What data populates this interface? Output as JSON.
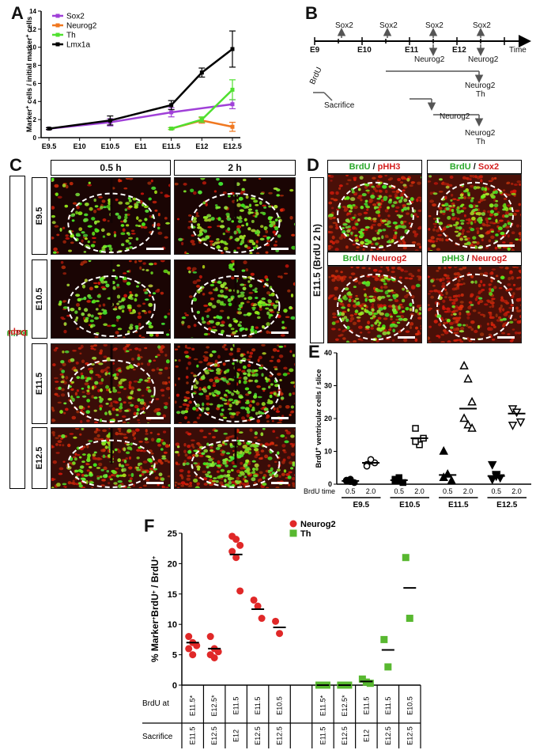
{
  "panels": {
    "A": {
      "label": "A",
      "chart_data": {
        "type": "line",
        "ylabel_parts": [
          "Marker",
          "+",
          " cells / initial marker",
          "+",
          " cells"
        ],
        "categories": [
          "E9.5",
          "E10",
          "E10.5",
          "E11",
          "E11.5",
          "E12",
          "E12.5"
        ],
        "x_index": [
          0,
          1,
          2,
          3,
          4,
          5,
          6
        ],
        "ylim": [
          0,
          14
        ],
        "yticks": [
          "0",
          "2",
          "4",
          "6",
          "8",
          "10",
          "12",
          "14"
        ],
        "legend_placement": "top-left",
        "series": [
          {
            "name": "Sox2",
            "color": "#a040d8",
            "points": [
              [
                0,
                1
              ],
              [
                2,
                1.7
              ],
              [
                4,
                2.8
              ],
              [
                6,
                3.7
              ]
            ],
            "err": [
              0.1,
              0.4,
              0.5,
              0.5
            ]
          },
          {
            "name": "Neurog2",
            "color": "#f07820",
            "points": [
              [
                4,
                1
              ],
              [
                5,
                1.9
              ],
              [
                6,
                1.2
              ]
            ],
            "err": [
              0.1,
              0.3,
              0.5
            ]
          },
          {
            "name": "Th",
            "color": "#50e030",
            "points": [
              [
                4,
                1
              ],
              [
                5,
                2
              ],
              [
                6,
                5.3
              ]
            ],
            "err": [
              0.1,
              0.3,
              1.1
            ]
          },
          {
            "name": "Lmx1a",
            "color": "#000000",
            "points": [
              [
                0,
                1
              ],
              [
                2,
                1.9
              ],
              [
                4,
                3.6
              ],
              [
                5,
                7.2
              ],
              [
                6,
                9.8
              ]
            ],
            "err": [
              0.1,
              0.5,
              0.5,
              0.5,
              2
            ]
          }
        ]
      }
    },
    "B": {
      "label": "B",
      "timeline": [
        "E9",
        "E10",
        "E11",
        "E12"
      ],
      "time_label": "Time",
      "sox2": "Sox2",
      "neurog2": "Neurog2",
      "th": "Th",
      "brdu": "BrdU",
      "sacrifice": "Sacrifice"
    },
    "C": {
      "label": "C",
      "side_left": "BrdU",
      "side_sep": " / ",
      "side_right": "Dapi",
      "cols": [
        "0.5 h",
        "2 h"
      ],
      "rows": [
        "E9.5",
        "E10.5",
        "E11.5",
        "E12.5"
      ]
    },
    "D": {
      "label": "D",
      "side": "E11.5 (BrdU 2 h)",
      "sep": " / ",
      "headers": [
        {
          "a": "BrdU",
          "b": "pHH3"
        },
        {
          "a": "BrdU",
          "b": "Sox2"
        },
        {
          "a": "BrdU",
          "b": "Neurog2"
        },
        {
          "a": "pHH3",
          "b": "Neurog2"
        }
      ]
    },
    "E": {
      "label": "E",
      "chart_data": {
        "type": "scatter",
        "ylabel_parts": [
          "BrdU",
          "+",
          " ventricular cells / slice"
        ],
        "ylim": [
          0,
          40
        ],
        "yticks": [
          "0",
          "10",
          "20",
          "30",
          "40"
        ],
        "brdu_time_label": "BrdU time",
        "times": [
          "0.5",
          "2.0"
        ],
        "groups": [
          {
            "name": "E9.5",
            "marker": "circle",
            "t05": [
              1,
              1.5,
              0.5,
              1.2,
              0.8
            ],
            "t05_mean": 1,
            "t20": [
              6,
              7,
              6.5,
              5.5,
              7.5
            ],
            "t20_mean": 6.5
          },
          {
            "name": "E10.5",
            "marker": "square",
            "t05": [
              1,
              2,
              0.5,
              1.5,
              1
            ],
            "t05_mean": 1.2,
            "t20": [
              17,
              12,
              14,
              13
            ],
            "t20_mean": 14
          },
          {
            "name": "E11.5",
            "marker": "triangle",
            "t05": [
              10,
              3,
              1,
              2
            ],
            "t05_mean": 2.8,
            "t20": [
              36,
              32,
              25,
              20,
              18,
              17
            ],
            "t20_mean": 23
          },
          {
            "name": "E12.5",
            "marker": "tri-down",
            "t05": [
              6,
              3,
              2,
              1.5,
              2.5
            ],
            "t05_mean": 2.5,
            "t20": [
              23,
              22,
              19,
              18
            ],
            "t20_mean": 21.5
          }
        ]
      }
    },
    "F": {
      "label": "F",
      "chart_data": {
        "type": "scatter",
        "ylabel_parts": [
          "% Marker",
          "+",
          "BrdU",
          "+",
          " / BrdU",
          "+"
        ],
        "ylim": [
          0,
          25
        ],
        "yticks": [
          "0",
          "5",
          "10",
          "15",
          "20",
          "25"
        ],
        "legend_placement": "top-right",
        "series": [
          {
            "name": "Neurog2",
            "color": "#e02828",
            "marker": "circle"
          },
          {
            "name": "Th",
            "color": "#58b830",
            "marker": "square"
          }
        ],
        "row_labels": [
          "BrdU at",
          "Sacrifice"
        ],
        "columns": [
          {
            "brdu": "E11.5*",
            "sac": "E11.5",
            "series": 0,
            "values": [
              8,
              7,
              6.5,
              6,
              5
            ],
            "mean": 7
          },
          {
            "brdu": "E12.5*",
            "sac": "E12.5",
            "series": 0,
            "values": [
              8,
              6,
              5.5,
              5,
              4.5
            ],
            "mean": 6
          },
          {
            "brdu": "E11.5",
            "sac": "E12",
            "series": 0,
            "values": [
              24.5,
              24,
              23,
              22,
              21,
              15.5
            ],
            "mean": 21.5
          },
          {
            "brdu": "E11.5",
            "sac": "E12.5",
            "series": 0,
            "values": [
              14,
              13,
              11
            ],
            "mean": 12.5
          },
          {
            "brdu": "E10.5",
            "sac": "E12.5",
            "series": 0,
            "values": [
              10.5,
              8.5
            ],
            "mean": 9.5
          },
          {
            "brdu": "",
            "sac": "",
            "series": -1,
            "values": [],
            "mean": null
          },
          {
            "brdu": "E11.5*",
            "sac": "E11.5",
            "series": 1,
            "values": [
              0,
              0,
              0
            ],
            "mean": 0
          },
          {
            "brdu": "E12.5*",
            "sac": "E12.5",
            "series": 1,
            "values": [
              0,
              0,
              0
            ],
            "mean": 0
          },
          {
            "brdu": "E11.5",
            "sac": "E12",
            "series": 1,
            "values": [
              1,
              0.5,
              0.3
            ],
            "mean": 0.6
          },
          {
            "brdu": "E11.5",
            "sac": "E12.5",
            "series": 1,
            "values": [
              7.5,
              3
            ],
            "mean": 5.8
          },
          {
            "brdu": "E10.5",
            "sac": "E12.5",
            "series": 1,
            "values": [
              21,
              11
            ],
            "mean": 16
          }
        ]
      }
    }
  }
}
